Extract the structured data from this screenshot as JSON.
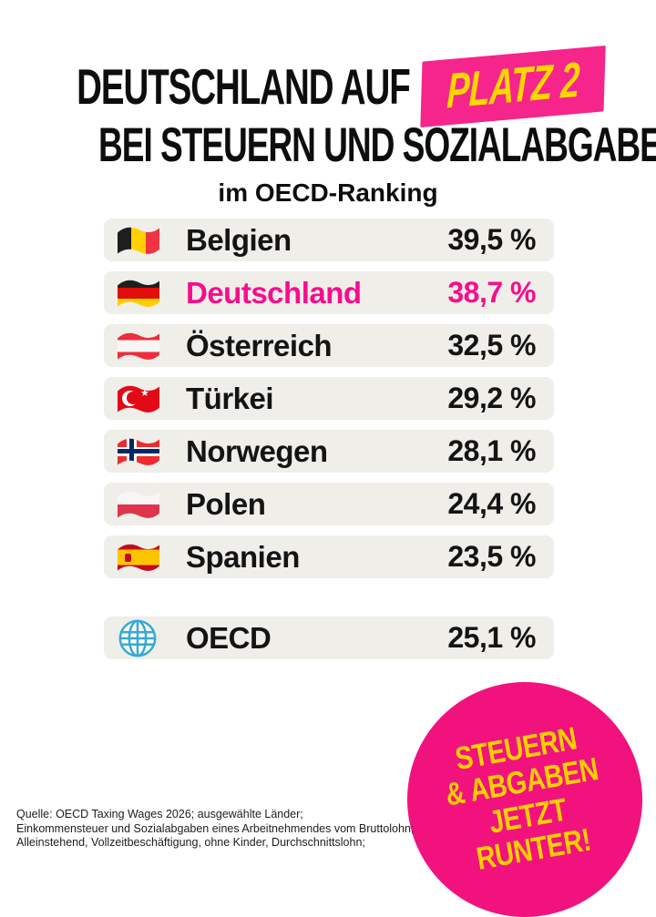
{
  "title": {
    "line1_prefix": "DEUTSCHLAND AUF",
    "highlight": "PLATZ 2",
    "line2": "BEI STEUERN UND SOZIALABGABEN",
    "subtitle": "im OECD-Ranking"
  },
  "ranking": {
    "rows": [
      {
        "country": "Belgien",
        "value": "39,5 %",
        "flag": "belgium-flag",
        "highlighted": false
      },
      {
        "country": "Deutschland",
        "value": "38,7 %",
        "flag": "germany-flag",
        "highlighted": true
      },
      {
        "country": "Österreich",
        "value": "32,5 %",
        "flag": "austria-flag",
        "highlighted": false
      },
      {
        "country": "Türkei",
        "value": "29,2 %",
        "flag": "turkey-flag",
        "highlighted": false
      },
      {
        "country": "Norwegen",
        "value": "28,1 %",
        "flag": "norway-flag",
        "highlighted": false
      },
      {
        "country": "Polen",
        "value": "24,4 %",
        "flag": "poland-flag",
        "highlighted": false
      },
      {
        "country": "Spanien",
        "value": "23,5 %",
        "flag": "spain-flag",
        "highlighted": false
      }
    ],
    "summary_row": {
      "country": "OECD",
      "value": "25,1 %",
      "flag": "globe",
      "highlighted": false
    }
  },
  "badge": {
    "lines": [
      "STEUERN",
      "& ABGABEN",
      "JETZT",
      "RUNTER!"
    ]
  },
  "source": {
    "lines": [
      "Quelle: OECD Taxing Wages 2026; ausgewählte Länder;",
      "Einkommensteuer und Sozialabgaben eines Arbeitnehmendes vom Bruttolohn;",
      "Alleinstehend, Vollzeitbeschäftigung, ohne Kinder, Durchschnittslohn;"
    ]
  },
  "colors": {
    "pink": "#F2127E",
    "pink_box": "#F5258B",
    "pink_text": "#F70D8C",
    "yellow": "#FFD600",
    "yellow_badge": "#FFCF00",
    "row_bg": "#F0EEE9",
    "ink": "#0D0D0D"
  },
  "chart_data": {
    "type": "table",
    "title": "Deutschland auf Platz 2 bei Steuern und Sozialabgaben im OECD-Ranking",
    "categories": [
      "Belgien",
      "Deutschland",
      "Österreich",
      "Türkei",
      "Norwegen",
      "Polen",
      "Spanien",
      "OECD"
    ],
    "values": [
      39.5,
      38.7,
      32.5,
      29.2,
      28.1,
      24.4,
      23.5,
      25.1
    ],
    "unit": "%",
    "highlighted_category": "Deutschland",
    "highlight_rank": 2,
    "source": "OECD Taxing Wages 2026"
  }
}
